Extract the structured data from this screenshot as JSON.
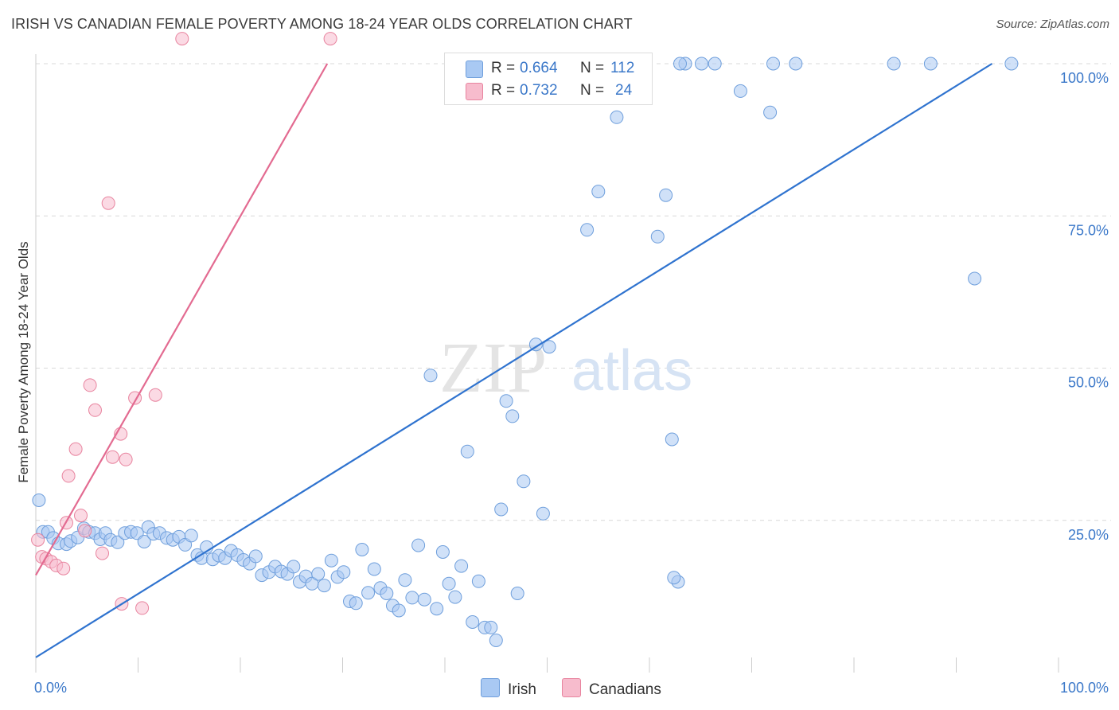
{
  "title": "IRISH VS CANADIAN FEMALE POVERTY AMONG 18-24 YEAR OLDS CORRELATION CHART",
  "source": "Source: ZipAtlas.com",
  "watermark": {
    "zip": "ZIP",
    "atlas": "atlas"
  },
  "legend": {
    "rows": [
      {
        "r_label": "R =",
        "r_value": "0.664",
        "n_label": "N =",
        "n_value": "112",
        "color": "#a9c9f3"
      },
      {
        "r_label": "R =",
        "r_value": "0.732",
        "n_label": "N =",
        "n_value": "24",
        "color": "#f7bccd"
      }
    ],
    "bottom": [
      {
        "label": "Irish",
        "color": "#a9c9f3"
      },
      {
        "label": "Canadians",
        "color": "#f7bccd"
      }
    ]
  },
  "chart_data": {
    "type": "scatter",
    "title": "IRISH VS CANADIAN FEMALE POVERTY AMONG 18-24 YEAR OLDS CORRELATION CHART",
    "xlabel": "",
    "ylabel": "Female Poverty Among 18-24 Year Olds",
    "xlim": [
      0,
      100
    ],
    "ylim": [
      0,
      100
    ],
    "x_tick_labels": [
      "0.0%",
      "100.0%"
    ],
    "y_tick_labels": [
      "25.0%",
      "50.0%",
      "75.0%",
      "100.0%"
    ],
    "y_ticks": [
      25,
      50,
      75,
      100
    ],
    "grid": true,
    "legend_position": "top-center",
    "series": [
      {
        "name": "Irish",
        "color": "#a9c9f3",
        "stroke": "#6f9fdc",
        "trend_color": "#2f73cf",
        "trend": [
          [
            0,
            2.5
          ],
          [
            93.5,
            100
          ]
        ],
        "points": [
          [
            0.3,
            28.3
          ],
          [
            0.7,
            23.1
          ],
          [
            1.2,
            23.1
          ],
          [
            1.7,
            22.1
          ],
          [
            2.2,
            21.2
          ],
          [
            3.0,
            21.1
          ],
          [
            3.4,
            21.6
          ],
          [
            4.1,
            22.2
          ],
          [
            4.7,
            23.7
          ],
          [
            5.2,
            23.1
          ],
          [
            5.8,
            22.9
          ],
          [
            6.3,
            21.9
          ],
          [
            6.8,
            22.9
          ],
          [
            7.3,
            21.8
          ],
          [
            8.0,
            21.4
          ],
          [
            8.7,
            22.9
          ],
          [
            9.3,
            23.1
          ],
          [
            9.9,
            22.9
          ],
          [
            10.6,
            21.5
          ],
          [
            11.0,
            23.9
          ],
          [
            11.5,
            22.8
          ],
          [
            12.1,
            22.9
          ],
          [
            12.8,
            22.1
          ],
          [
            13.4,
            21.8
          ],
          [
            14.0,
            22.3
          ],
          [
            14.6,
            21.0
          ],
          [
            15.2,
            22.5
          ],
          [
            15.8,
            19.3
          ],
          [
            16.2,
            18.8
          ],
          [
            16.7,
            20.6
          ],
          [
            17.3,
            18.6
          ],
          [
            17.9,
            19.2
          ],
          [
            18.5,
            18.8
          ],
          [
            19.1,
            20.0
          ],
          [
            19.7,
            19.3
          ],
          [
            20.3,
            18.5
          ],
          [
            20.9,
            17.9
          ],
          [
            21.5,
            19.1
          ],
          [
            22.1,
            16.0
          ],
          [
            22.8,
            16.5
          ],
          [
            23.4,
            17.4
          ],
          [
            24.0,
            16.6
          ],
          [
            24.6,
            16.2
          ],
          [
            25.2,
            17.4
          ],
          [
            25.8,
            14.9
          ],
          [
            26.4,
            15.8
          ],
          [
            27.0,
            14.6
          ],
          [
            27.6,
            16.2
          ],
          [
            28.2,
            14.3
          ],
          [
            28.9,
            18.4
          ],
          [
            29.5,
            15.7
          ],
          [
            30.1,
            16.5
          ],
          [
            30.7,
            11.7
          ],
          [
            31.3,
            11.4
          ],
          [
            31.9,
            20.2
          ],
          [
            32.5,
            13.1
          ],
          [
            33.1,
            17.0
          ],
          [
            33.7,
            13.9
          ],
          [
            34.3,
            13.0
          ],
          [
            34.9,
            11.0
          ],
          [
            35.5,
            10.2
          ],
          [
            36.1,
            15.2
          ],
          [
            36.8,
            12.3
          ],
          [
            37.4,
            20.9
          ],
          [
            38.0,
            12.0
          ],
          [
            38.6,
            48.8
          ],
          [
            39.2,
            10.5
          ],
          [
            39.8,
            19.8
          ],
          [
            40.4,
            14.6
          ],
          [
            41.0,
            12.4
          ],
          [
            41.6,
            17.5
          ],
          [
            42.2,
            36.3
          ],
          [
            42.7,
            8.3
          ],
          [
            43.3,
            15.0
          ],
          [
            43.9,
            7.4
          ],
          [
            44.5,
            7.4
          ],
          [
            45.0,
            5.3
          ],
          [
            45.5,
            26.8
          ],
          [
            46.0,
            44.6
          ],
          [
            46.6,
            42.1
          ],
          [
            47.1,
            13.0
          ],
          [
            47.7,
            31.4
          ],
          [
            48.3,
            100.0
          ],
          [
            48.9,
            53.9
          ],
          [
            49.6,
            26.1
          ],
          [
            50.2,
            53.5
          ],
          [
            50.8,
            100.0
          ],
          [
            51.4,
            100.0
          ],
          [
            52.1,
            100.0
          ],
          [
            52.9,
            100.0
          ],
          [
            53.9,
            72.7
          ],
          [
            55.0,
            79.0
          ],
          [
            56.8,
            91.2
          ],
          [
            57.9,
            100.0
          ],
          [
            59.3,
            100.0
          ],
          [
            60.8,
            71.6
          ],
          [
            61.6,
            78.4
          ],
          [
            62.2,
            38.3
          ],
          [
            62.8,
            14.9
          ],
          [
            63.5,
            100.0
          ],
          [
            65.1,
            100.0
          ],
          [
            66.4,
            100.0
          ],
          [
            68.9,
            95.5
          ],
          [
            72.1,
            100.0
          ],
          [
            74.3,
            100.0
          ],
          [
            95.4,
            100.0
          ],
          [
            83.9,
            100.0
          ],
          [
            87.5,
            100.0
          ],
          [
            71.8,
            92.0
          ],
          [
            91.8,
            64.7
          ],
          [
            62.4,
            15.6
          ],
          [
            63.0,
            100.0
          ]
        ]
      },
      {
        "name": "Canadians",
        "color": "#f7bccd",
        "stroke": "#e8849f",
        "trend_color": "#e36b91",
        "trend": [
          [
            0,
            16.0
          ],
          [
            28.5,
            100.0
          ]
        ],
        "points": [
          [
            0.2,
            21.8
          ],
          [
            0.6,
            19.0
          ],
          [
            1.0,
            18.7
          ],
          [
            1.5,
            18.2
          ],
          [
            2.0,
            17.6
          ],
          [
            2.7,
            17.1
          ],
          [
            3.0,
            24.6
          ],
          [
            3.2,
            32.3
          ],
          [
            3.9,
            36.7
          ],
          [
            4.4,
            25.8
          ],
          [
            4.8,
            23.3
          ],
          [
            5.3,
            47.2
          ],
          [
            5.8,
            43.1
          ],
          [
            6.5,
            19.6
          ],
          [
            7.1,
            77.1
          ],
          [
            7.5,
            35.4
          ],
          [
            8.3,
            39.2
          ],
          [
            8.4,
            11.3
          ],
          [
            8.8,
            35.0
          ],
          [
            9.7,
            45.1
          ],
          [
            10.4,
            10.6
          ],
          [
            11.7,
            45.6
          ],
          [
            14.3,
            104.1
          ],
          [
            28.8,
            104.1
          ]
        ]
      }
    ]
  }
}
